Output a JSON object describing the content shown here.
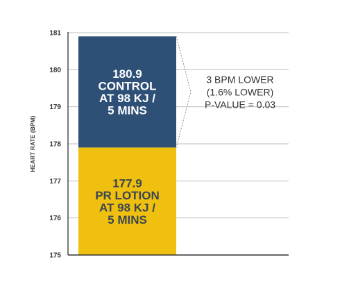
{
  "chart_data": {
    "type": "bar",
    "stacked": true,
    "title": "",
    "xlabel": "",
    "ylabel": "HEART RATE (BPM)",
    "ylim": [
      175,
      181
    ],
    "yticks": [
      "181",
      "180",
      "179",
      "178",
      "177",
      "176",
      "175"
    ],
    "grid": true,
    "series": [
      {
        "value": 177.9,
        "color": "#F0C010",
        "text_color": "#3A4550",
        "label_lines": [
          "177.9",
          "PR LOTION",
          "AT 98 KJ /",
          "5 MINS"
        ]
      },
      {
        "value": 180.9,
        "color": "#2E5077",
        "text_color": "#FFFFFF",
        "label_lines": [
          "180.9",
          "CONTROL",
          "AT 98 KJ /",
          "5 MINS"
        ]
      }
    ],
    "annotation": {
      "lines": [
        "3 BPM LOWER",
        "(1.6% LOWER)",
        "P-VALUE = 0.03"
      ]
    }
  }
}
